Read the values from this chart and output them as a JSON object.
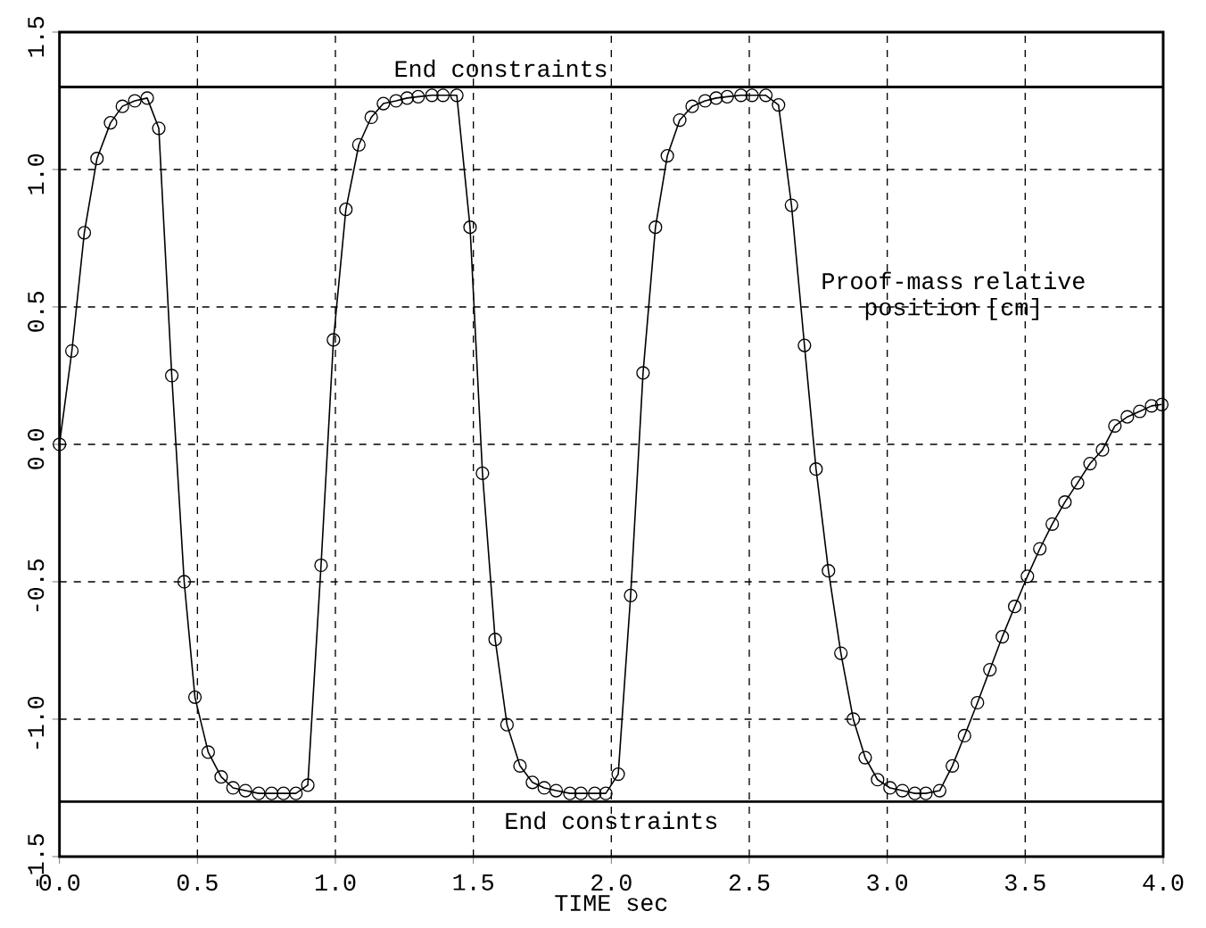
{
  "chart_data": {
    "type": "line",
    "xlabel": "TIME  sec",
    "annotations": [
      "Proof-mass relative position [cm]"
    ],
    "xlim": [
      0,
      4
    ],
    "ylim": [
      -1.5,
      1.5
    ],
    "xticks": [
      {
        "value": 0,
        "label": "0.0"
      },
      {
        "value": 0.5,
        "label": "0.5"
      },
      {
        "value": 1,
        "label": "1.0"
      },
      {
        "value": 1.5,
        "label": "1.5"
      },
      {
        "value": 2,
        "label": "2.0"
      },
      {
        "value": 2.5,
        "label": "2.5"
      },
      {
        "value": 3,
        "label": "3.0"
      },
      {
        "value": 3.5,
        "label": "3.5"
      },
      {
        "value": 4,
        "label": "4.0"
      }
    ],
    "yticks": [
      {
        "value": -1.5,
        "label": "-1.5"
      },
      {
        "value": -1,
        "label": "-1.0"
      },
      {
        "value": -0.5,
        "label": "-0.5"
      },
      {
        "value": 0,
        "label": "0.0"
      },
      {
        "value": 0.5,
        "label": "0.5"
      },
      {
        "value": 1,
        "label": "1.0"
      },
      {
        "value": 1.5,
        "label": "1.5"
      }
    ],
    "grid": true,
    "marker": "circle",
    "line_style": "solid",
    "ref_lines": [
      {
        "axis": "y",
        "value": 1.3,
        "label": "End constraints",
        "color": "#000000"
      },
      {
        "axis": "y",
        "value": -1.3,
        "label": "End constraints",
        "color": "#000000"
      }
    ],
    "series": [
      {
        "color": "#000000",
        "x": [
          0,
          0.045,
          0.09,
          0.136,
          0.185,
          0.228,
          0.273,
          0.318,
          0.36,
          0.407,
          0.452,
          0.491,
          0.539,
          0.586,
          0.629,
          0.674,
          0.722,
          0.769,
          0.812,
          0.857,
          0.9,
          0.948,
          0.993,
          1.038,
          1.085,
          1.13,
          1.174,
          1.22,
          1.26,
          1.3,
          1.35,
          1.39,
          1.44,
          1.488,
          1.533,
          1.579,
          1.622,
          1.669,
          1.714,
          1.757,
          1.8,
          1.85,
          1.89,
          1.94,
          1.98,
          2.025,
          2.07,
          2.115,
          2.16,
          2.203,
          2.248,
          2.293,
          2.34,
          2.38,
          2.42,
          2.47,
          2.51,
          2.56,
          2.606,
          2.653,
          2.7,
          2.742,
          2.787,
          2.832,
          2.877,
          2.92,
          2.965,
          3.01,
          3.055,
          3.1,
          3.14,
          3.19,
          3.236,
          3.28,
          3.327,
          3.372,
          3.417,
          3.462,
          3.508,
          3.553,
          3.598,
          3.644,
          3.69,
          3.735,
          3.78,
          3.825,
          3.87,
          3.915,
          3.958,
          3.995
        ],
        "values": [
          0,
          0.34,
          0.77,
          1.04,
          1.17,
          1.23,
          1.25,
          1.26,
          1.15,
          0.25,
          -0.5,
          -0.92,
          -1.12,
          -1.21,
          -1.25,
          -1.26,
          -1.27,
          -1.27,
          -1.27,
          -1.27,
          -1.24,
          -0.44,
          0.38,
          0.855,
          1.09,
          1.19,
          1.24,
          1.25,
          1.26,
          1.265,
          1.27,
          1.27,
          1.27,
          0.79,
          -0.105,
          -0.71,
          -1.02,
          -1.17,
          -1.23,
          -1.25,
          -1.26,
          -1.27,
          -1.27,
          -1.27,
          -1.27,
          -1.2,
          -0.55,
          0.26,
          0.79,
          1.05,
          1.18,
          1.23,
          1.25,
          1.26,
          1.265,
          1.27,
          1.27,
          1.27,
          1.235,
          0.87,
          0.36,
          -0.09,
          -0.46,
          -0.76,
          -1.0,
          -1.14,
          -1.22,
          -1.25,
          -1.26,
          -1.27,
          -1.27,
          -1.26,
          -1.17,
          -1.06,
          -0.94,
          -0.82,
          -0.7,
          -0.59,
          -0.48,
          -0.38,
          -0.29,
          -0.21,
          -0.14,
          -0.07,
          -0.02,
          0.067,
          0.1,
          0.12,
          0.14,
          0.145
        ]
      }
    ]
  }
}
